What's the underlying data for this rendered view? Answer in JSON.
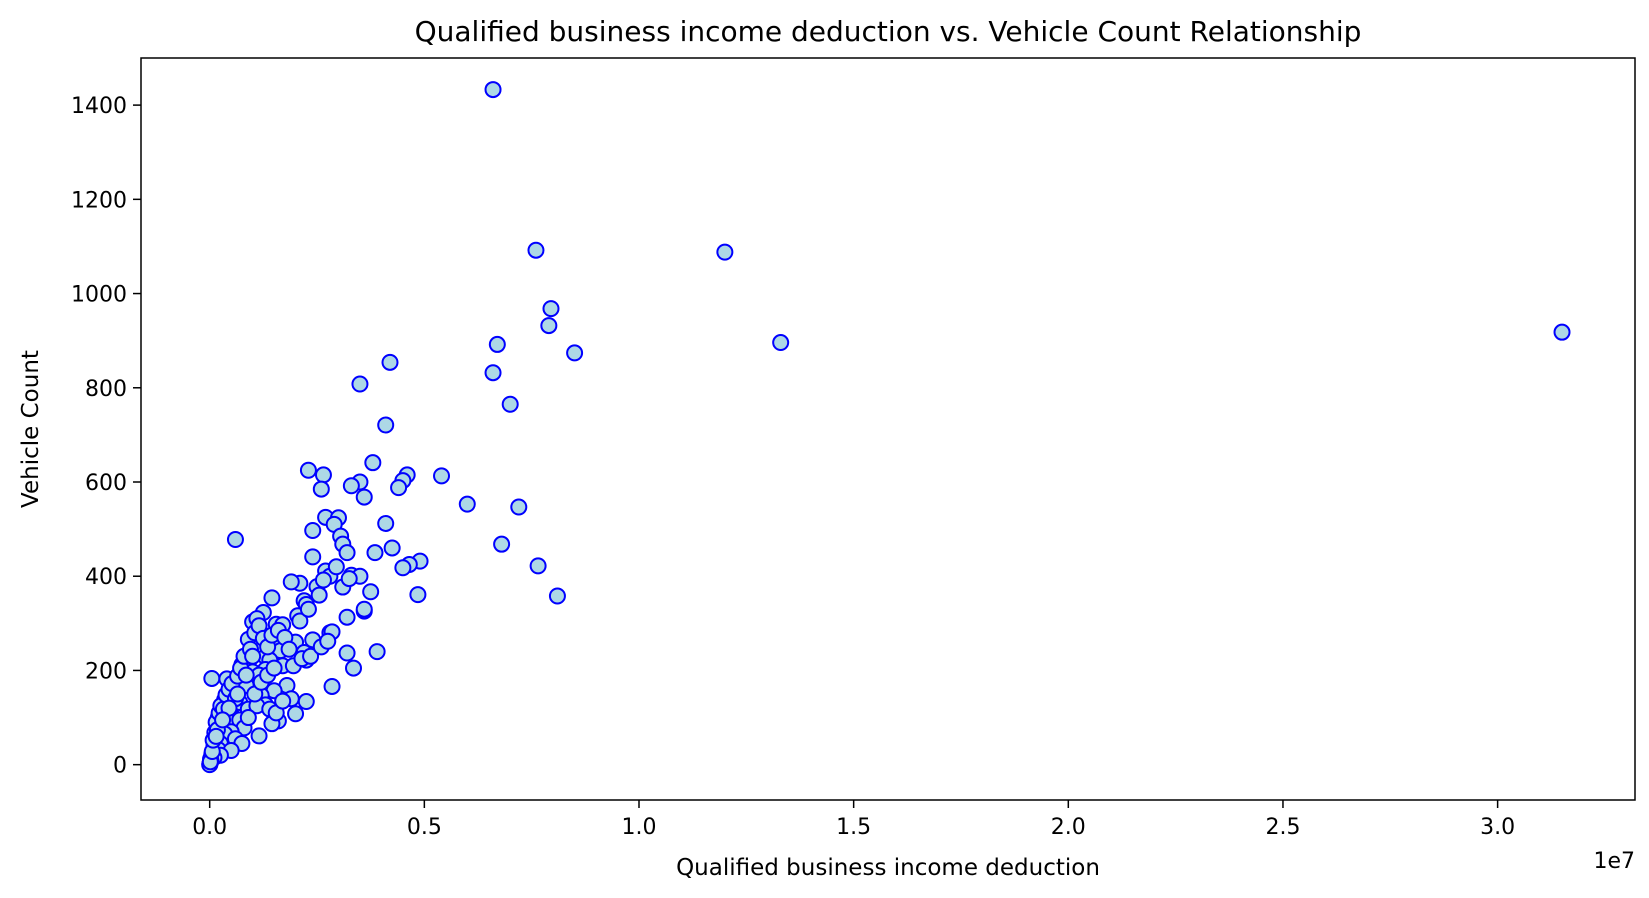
{
  "chart_data": {
    "type": "scatter",
    "title": "Qualified business income deduction vs. Vehicle Count Relationship",
    "xlabel": "Qualified business income deduction",
    "ylabel": "Vehicle Count",
    "x_offset_text": "1e7",
    "xlim": [
      -1600000,
      33200000
    ],
    "ylim": [
      -75,
      1500
    ],
    "x_ticks": [
      0,
      5000000,
      10000000,
      15000000,
      20000000,
      25000000,
      30000000
    ],
    "x_tick_labels": [
      "0.0",
      "0.5",
      "1.0",
      "1.5",
      "2.0",
      "2.5",
      "3.0"
    ],
    "y_ticks": [
      0,
      200,
      400,
      600,
      800,
      1000,
      1200,
      1400
    ],
    "y_tick_labels": [
      "0",
      "200",
      "400",
      "600",
      "800",
      "1000",
      "1200",
      "1400"
    ],
    "grid": false,
    "marker_color": "#add8e6",
    "marker_edge_color": "#0000ff",
    "series": [
      {
        "points": [
          [
            6600000,
            1433
          ],
          [
            7600000,
            1092
          ],
          [
            12000000,
            1088
          ],
          [
            31500000,
            918
          ],
          [
            13300000,
            896
          ],
          [
            7950000,
            968
          ],
          [
            7900000,
            932
          ],
          [
            6700000,
            892
          ],
          [
            8500000,
            874
          ],
          [
            4200000,
            854
          ],
          [
            6600000,
            832
          ],
          [
            3500000,
            808
          ],
          [
            7000000,
            765
          ],
          [
            4100000,
            721
          ],
          [
            3800000,
            641
          ],
          [
            2300000,
            625
          ],
          [
            2650000,
            615
          ],
          [
            4600000,
            615
          ],
          [
            5400000,
            613
          ],
          [
            4500000,
            603
          ],
          [
            3500000,
            600
          ],
          [
            3300000,
            592
          ],
          [
            4400000,
            588
          ],
          [
            2600000,
            585
          ],
          [
            3600000,
            568
          ],
          [
            6000000,
            553
          ],
          [
            7200000,
            547
          ],
          [
            2700000,
            525
          ],
          [
            3000000,
            524
          ],
          [
            2900000,
            510
          ],
          [
            4100000,
            512
          ],
          [
            2400000,
            497
          ],
          [
            3050000,
            485
          ],
          [
            3100000,
            468
          ],
          [
            6800000,
            468
          ],
          [
            600000,
            478
          ],
          [
            4250000,
            460
          ],
          [
            3200000,
            450
          ],
          [
            3850000,
            450
          ],
          [
            2400000,
            441
          ],
          [
            4900000,
            432
          ],
          [
            4650000,
            425
          ],
          [
            4500000,
            418
          ],
          [
            7650000,
            422
          ],
          [
            2700000,
            411
          ],
          [
            3300000,
            402
          ],
          [
            2800000,
            400
          ],
          [
            3500000,
            400
          ],
          [
            2100000,
            385
          ],
          [
            1900000,
            388
          ],
          [
            2500000,
            378
          ],
          [
            3100000,
            377
          ],
          [
            3750000,
            367
          ],
          [
            4850000,
            361
          ],
          [
            8100000,
            358
          ],
          [
            2200000,
            348
          ],
          [
            1450000,
            354
          ],
          [
            2250000,
            340
          ],
          [
            3600000,
            326
          ],
          [
            2050000,
            316
          ],
          [
            3200000,
            313
          ],
          [
            1250000,
            323
          ],
          [
            1000000,
            303
          ],
          [
            1550000,
            298
          ],
          [
            1700000,
            297
          ],
          [
            2800000,
            280
          ],
          [
            2400000,
            265
          ],
          [
            2850000,
            282
          ],
          [
            900000,
            266
          ],
          [
            1500000,
            265
          ],
          [
            1200000,
            254
          ],
          [
            2000000,
            260
          ],
          [
            2200000,
            238
          ],
          [
            1650000,
            242
          ],
          [
            3200000,
            237
          ],
          [
            3900000,
            240
          ],
          [
            1300000,
            229
          ],
          [
            1400000,
            222
          ],
          [
            2250000,
            222
          ],
          [
            900000,
            218
          ],
          [
            750000,
            212
          ],
          [
            1300000,
            202
          ],
          [
            1700000,
            210
          ],
          [
            3350000,
            205
          ],
          [
            50000,
            183
          ],
          [
            400000,
            182
          ],
          [
            1000000,
            197
          ],
          [
            1150000,
            190
          ],
          [
            1800000,
            168
          ],
          [
            850000,
            168
          ],
          [
            2850000,
            166
          ],
          [
            1500000,
            157
          ],
          [
            1200000,
            147
          ],
          [
            1900000,
            140
          ],
          [
            500000,
            150
          ],
          [
            350000,
            138
          ],
          [
            700000,
            132
          ],
          [
            2250000,
            134
          ],
          [
            1300000,
            127
          ],
          [
            900000,
            118
          ],
          [
            2000000,
            108
          ],
          [
            200000,
            100
          ],
          [
            550000,
            100
          ],
          [
            700000,
            95
          ],
          [
            1600000,
            93
          ],
          [
            1450000,
            87
          ],
          [
            300000,
            80
          ],
          [
            800000,
            78
          ],
          [
            500000,
            70
          ],
          [
            350000,
            65
          ],
          [
            1150000,
            61
          ],
          [
            600000,
            55
          ],
          [
            250000,
            45
          ],
          [
            750000,
            45
          ],
          [
            100000,
            40
          ],
          [
            200000,
            32
          ],
          [
            500000,
            30
          ],
          [
            50000,
            22
          ],
          [
            250000,
            20
          ],
          [
            100000,
            15
          ],
          [
            20000,
            12
          ],
          [
            30000,
            8
          ],
          [
            10000,
            4
          ],
          [
            5000,
            1
          ],
          [
            0,
            0
          ],
          [
            15000,
            6
          ],
          [
            60000,
            28
          ],
          [
            80000,
            52
          ],
          [
            120000,
            68
          ],
          [
            150000,
            90
          ],
          [
            180000,
            74
          ],
          [
            220000,
            110
          ],
          [
            260000,
            125
          ],
          [
            320000,
            118
          ],
          [
            380000,
            148
          ],
          [
            450000,
            160
          ],
          [
            520000,
            172
          ],
          [
            600000,
            140
          ],
          [
            650000,
            188
          ],
          [
            720000,
            205
          ],
          [
            800000,
            230
          ],
          [
            950000,
            245
          ],
          [
            1050000,
            280
          ],
          [
            1100000,
            310
          ],
          [
            1150000,
            295
          ],
          [
            1250000,
            268
          ],
          [
            1350000,
            250
          ],
          [
            1450000,
            275
          ],
          [
            1600000,
            285
          ],
          [
            1750000,
            270
          ],
          [
            1850000,
            245
          ],
          [
            2100000,
            305
          ],
          [
            2300000,
            330
          ],
          [
            2550000,
            360
          ],
          [
            2650000,
            392
          ],
          [
            2950000,
            420
          ],
          [
            3250000,
            395
          ],
          [
            3600000,
            330
          ],
          [
            1100000,
            125
          ],
          [
            1400000,
            118
          ],
          [
            1550000,
            110
          ],
          [
            1700000,
            135
          ],
          [
            1950000,
            210
          ],
          [
            2150000,
            225
          ],
          [
            2350000,
            230
          ],
          [
            2600000,
            250
          ],
          [
            2750000,
            262
          ],
          [
            1000000,
            230
          ],
          [
            850000,
            190
          ],
          [
            650000,
            150
          ],
          [
            450000,
            120
          ],
          [
            300000,
            95
          ],
          [
            150000,
            60
          ],
          [
            900000,
            100
          ],
          [
            1050000,
            150
          ],
          [
            1200000,
            175
          ],
          [
            1350000,
            190
          ],
          [
            1500000,
            205
          ]
        ]
      }
    ]
  }
}
